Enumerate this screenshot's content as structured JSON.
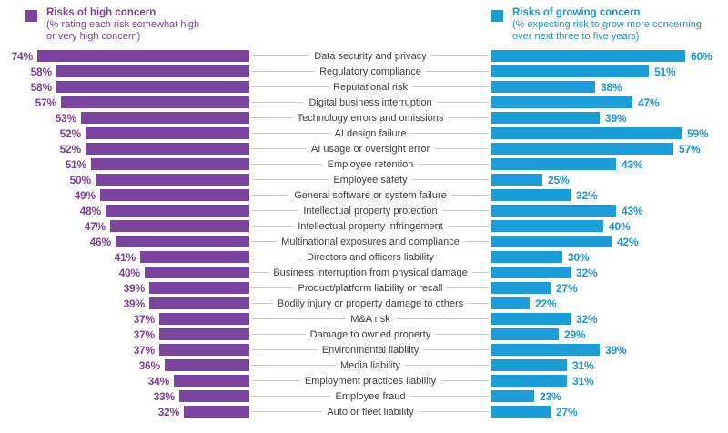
{
  "legend_left": {
    "title": "Risks of high concern",
    "subtitle_line1": "(% rating each risk somewhat high",
    "subtitle_line2": "or very high concern)"
  },
  "legend_right": {
    "title": "Risks of growing concern",
    "subtitle_line1": "(% expecting risk to grow more concerning",
    "subtitle_line2": "over next three to five years)"
  },
  "chart_data": {
    "type": "bar",
    "orientation": "butterfly",
    "value_suffix": "%",
    "value_range": [
      0,
      100
    ],
    "grid": false,
    "legend_position": "top",
    "categories": [
      "Data security and privacy",
      "Regulatory compliance",
      "Reputational risk",
      "Digital business interruption",
      "Technology errors and omissions",
      "AI design failure",
      "AI usage or oversight error",
      "Employee retention",
      "Employee safety",
      "General software or system failure",
      "Intellectual property protection",
      "Intellectual property infringement",
      "Multinational exposures and compliance",
      "Directors and officers liability",
      "Business interruption from physical damage",
      "Product/platform liability or recall",
      "Bodily injury or property damage to others",
      "M&A risk",
      "Damage to owned property",
      "Environmental liability",
      "Media liability",
      "Employment practices liability",
      "Employee fraud",
      "Auto or fleet liability"
    ],
    "series": [
      {
        "name": "Risks of high concern",
        "side": "left",
        "color": "#7C43A1",
        "text_color": "#7D3F98",
        "values": [
          74,
          58,
          58,
          57,
          53,
          52,
          52,
          51,
          50,
          49,
          48,
          47,
          46,
          41,
          40,
          39,
          39,
          37,
          37,
          37,
          36,
          34,
          33,
          32
        ],
        "labels": [
          "74%",
          "58%",
          "58%",
          "57%",
          "53%",
          "52%",
          "52%",
          "51%",
          "50%",
          "49%",
          "48%",
          "47%",
          "46%",
          "41%",
          "40%",
          "39%",
          "39%",
          "37%",
          "37%",
          "37%",
          "36%",
          "34%",
          "33%",
          "32%"
        ]
      },
      {
        "name": "Risks of growing concern",
        "side": "right",
        "color": "#1B9DD9",
        "text_color": "#1897D6",
        "values": [
          60,
          51,
          38,
          47,
          39,
          59,
          57,
          43,
          25,
          32,
          43,
          40,
          42,
          30,
          32,
          27,
          22,
          32,
          29,
          39,
          31,
          31,
          23,
          27
        ],
        "labels": [
          "60%",
          "51%",
          "38%",
          "47%",
          "39%",
          "59%",
          "57%",
          "43%",
          "25%",
          "32%",
          "43%",
          "40%",
          "42%",
          "30%",
          "32%",
          "27%",
          "22%",
          "32%",
          "29%",
          "39%",
          "31%",
          "31%",
          "23%",
          "27%"
        ]
      }
    ]
  }
}
